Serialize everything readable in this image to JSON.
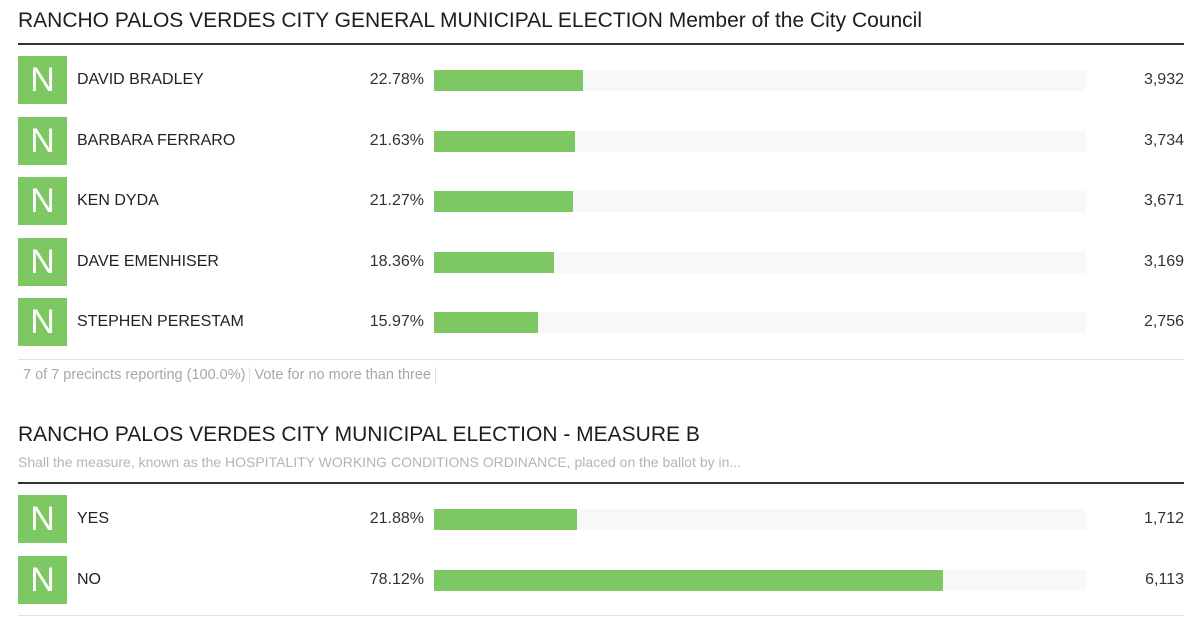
{
  "races": [
    {
      "title": "RANCHO PALOS VERDES CITY GENERAL MUNICIPAL ELECTION Member of the City Council",
      "subtitle": "",
      "footer": {
        "precincts": "7 of 7 precincts reporting (100.0%)",
        "instructions": "Vote for no more than three"
      },
      "candidates": [
        {
          "badge": "N",
          "name": "DAVID BRADLEY",
          "percent": "22.78%",
          "share": 22.78,
          "votes": "3,932"
        },
        {
          "badge": "N",
          "name": "BARBARA FERRARO",
          "percent": "21.63%",
          "share": 21.63,
          "votes": "3,734"
        },
        {
          "badge": "N",
          "name": "KEN DYDA",
          "percent": "21.27%",
          "share": 21.27,
          "votes": "3,671"
        },
        {
          "badge": "N",
          "name": "DAVE EMENHISER",
          "percent": "18.36%",
          "share": 18.36,
          "votes": "3,169"
        },
        {
          "badge": "N",
          "name": "STEPHEN PERESTAM",
          "percent": "15.97%",
          "share": 15.97,
          "votes": "2,756"
        }
      ]
    },
    {
      "title": "RANCHO PALOS VERDES CITY MUNICIPAL ELECTION - MEASURE B",
      "subtitle": "Shall the measure, known as the HOSPITALITY WORKING CONDITIONS ORDINANCE, placed on the ballot by in...",
      "candidates": [
        {
          "badge": "N",
          "name": "YES",
          "percent": "21.88%",
          "share": 21.88,
          "votes": "1,712"
        },
        {
          "badge": "N",
          "name": "NO",
          "percent": "78.12%",
          "share": 78.12,
          "votes": "6,113"
        }
      ]
    }
  ],
  "colors": {
    "bar": "#7dc863",
    "track": "#f6f8fa",
    "badge": "#7dc863"
  }
}
